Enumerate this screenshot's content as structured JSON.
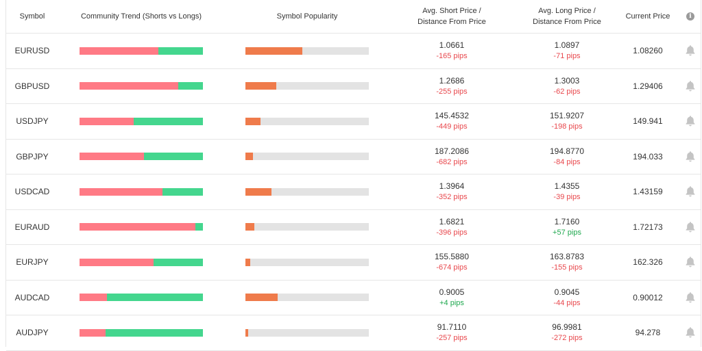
{
  "header": {
    "symbol": "Symbol",
    "trend": "Community Trend (Shorts vs Longs)",
    "popularity": "Symbol Popularity",
    "short_line1": "Avg. Short Price /",
    "short_line2": "Distance From Price",
    "long_line1": "Avg. Long Price /",
    "long_line2": "Distance From Price",
    "current": "Current Price",
    "info_icon": "info-icon"
  },
  "colors": {
    "shorts": "#ff7a85",
    "longs": "#44d68e",
    "popularity": "#ef7b4b",
    "negative_pips": "#e8474c",
    "positive_pips": "#1ea84e"
  },
  "rows": [
    {
      "symbol": "EURUSD",
      "short_ratio": 0.64,
      "popularity": 0.46,
      "avg_short": "1.0661",
      "short_pips": "-165 pips",
      "short_pips_sign": "neg",
      "avg_long": "1.0897",
      "long_pips": "-71 pips",
      "long_pips_sign": "neg",
      "current": "1.08260"
    },
    {
      "symbol": "GBPUSD",
      "short_ratio": 0.8,
      "popularity": 0.25,
      "avg_short": "1.2686",
      "short_pips": "-255 pips",
      "short_pips_sign": "neg",
      "avg_long": "1.3003",
      "long_pips": "-62 pips",
      "long_pips_sign": "neg",
      "current": "1.29406"
    },
    {
      "symbol": "USDJPY",
      "short_ratio": 0.44,
      "popularity": 0.12,
      "avg_short": "145.4532",
      "short_pips": "-449 pips",
      "short_pips_sign": "neg",
      "avg_long": "151.9207",
      "long_pips": "-198 pips",
      "long_pips_sign": "neg",
      "current": "149.941"
    },
    {
      "symbol": "GBPJPY",
      "short_ratio": 0.52,
      "popularity": 0.06,
      "avg_short": "187.2086",
      "short_pips": "-682 pips",
      "short_pips_sign": "neg",
      "avg_long": "194.8770",
      "long_pips": "-84 pips",
      "long_pips_sign": "neg",
      "current": "194.033"
    },
    {
      "symbol": "USDCAD",
      "short_ratio": 0.67,
      "popularity": 0.21,
      "avg_short": "1.3964",
      "short_pips": "-352 pips",
      "short_pips_sign": "neg",
      "avg_long": "1.4355",
      "long_pips": "-39 pips",
      "long_pips_sign": "neg",
      "current": "1.43159"
    },
    {
      "symbol": "EURAUD",
      "short_ratio": 0.94,
      "popularity": 0.07,
      "avg_short": "1.6821",
      "short_pips": "-396 pips",
      "short_pips_sign": "neg",
      "avg_long": "1.7160",
      "long_pips": "+57 pips",
      "long_pips_sign": "pos",
      "current": "1.72173"
    },
    {
      "symbol": "EURJPY",
      "short_ratio": 0.6,
      "popularity": 0.04,
      "avg_short": "155.5880",
      "short_pips": "-674 pips",
      "short_pips_sign": "neg",
      "avg_long": "163.8783",
      "long_pips": "-155 pips",
      "long_pips_sign": "neg",
      "current": "162.326"
    },
    {
      "symbol": "AUDCAD",
      "short_ratio": 0.22,
      "popularity": 0.26,
      "avg_short": "0.9005",
      "short_pips": "+4 pips",
      "short_pips_sign": "pos",
      "avg_long": "0.9045",
      "long_pips": "-44 pips",
      "long_pips_sign": "neg",
      "current": "0.90012"
    },
    {
      "symbol": "AUDJPY",
      "short_ratio": 0.21,
      "popularity": 0.02,
      "avg_short": "91.7110",
      "short_pips": "-257 pips",
      "short_pips_sign": "neg",
      "avg_long": "96.9981",
      "long_pips": "-272 pips",
      "long_pips_sign": "neg",
      "current": "94.278"
    }
  ]
}
